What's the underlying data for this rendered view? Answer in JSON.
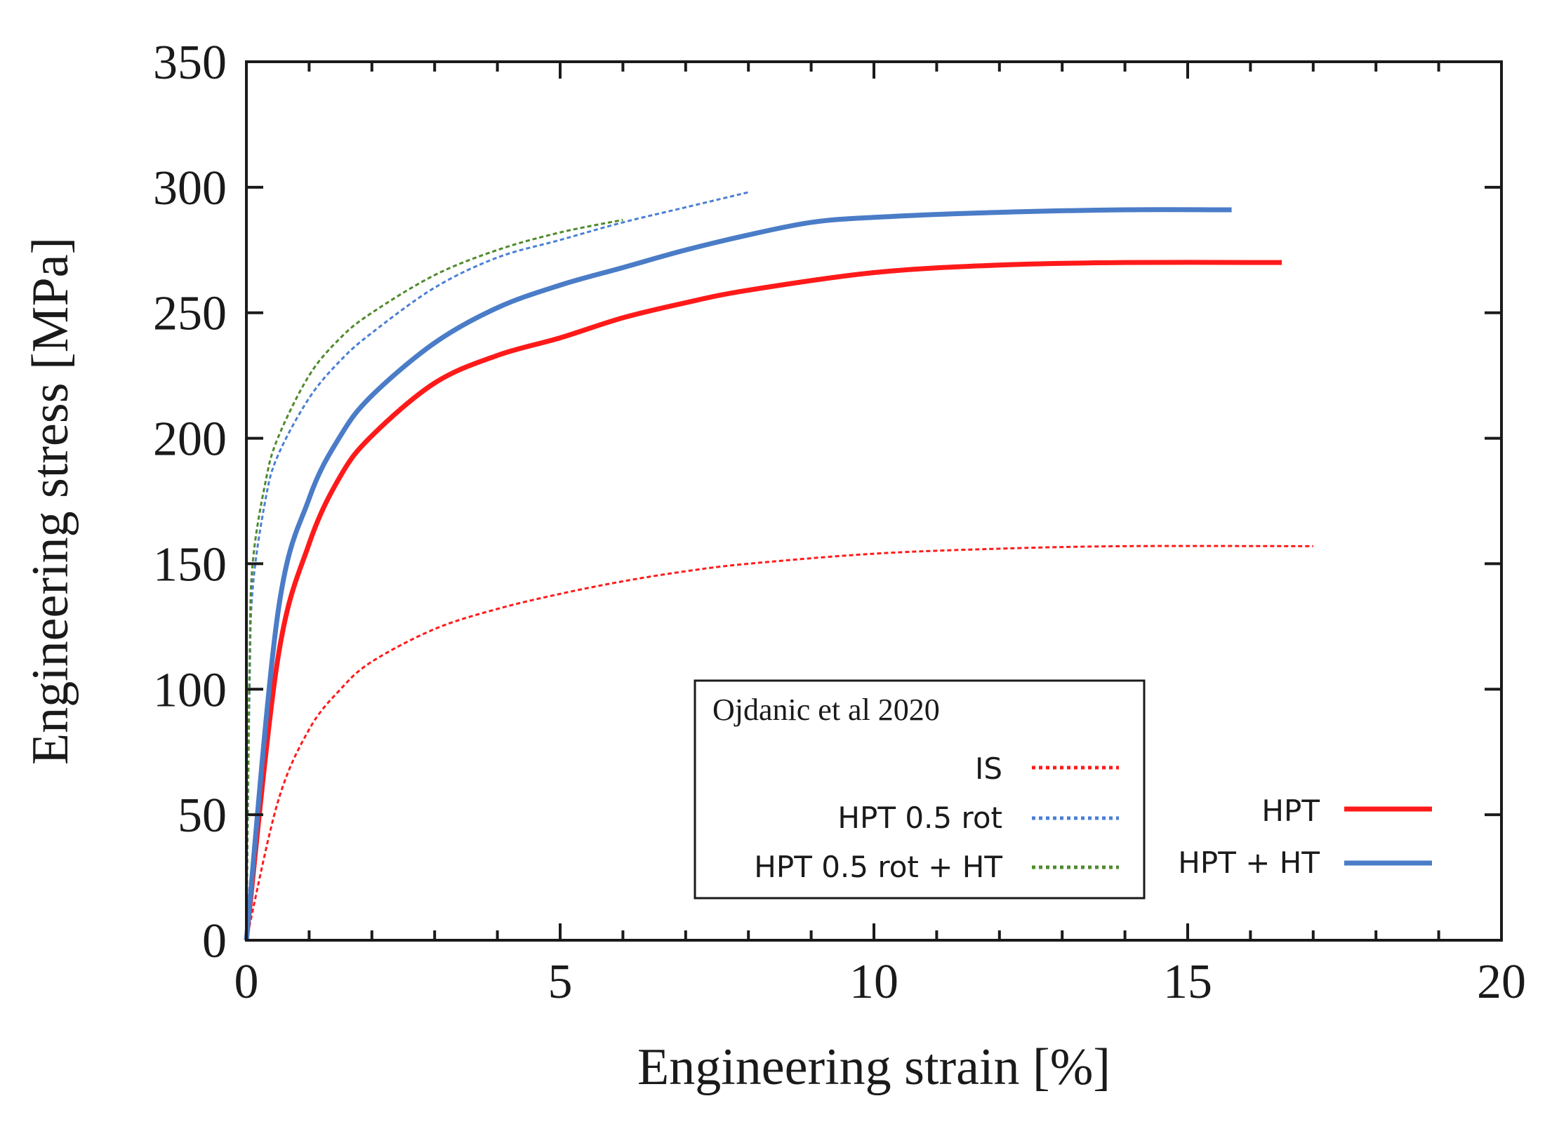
{
  "chart_data": {
    "type": "line",
    "xlabel": "Engineering strain [%]",
    "ylabel": "Engineering stress [MPa]",
    "xlim": [
      0,
      20
    ],
    "ylim": [
      0,
      350
    ],
    "x_ticks": [
      "0",
      "5",
      "10",
      "15",
      "20"
    ],
    "y_ticks": [
      "0",
      "50",
      "100",
      "150",
      "200",
      "250",
      "300",
      "350"
    ],
    "grid": false,
    "legend_box": {
      "title": "Ojdanic et al 2020",
      "placement": "lower-center"
    },
    "series": [
      {
        "name": "IS",
        "color": "#ff1a1a",
        "style": "dotted",
        "x": [
          0,
          0.5,
          1,
          1.5,
          2,
          3,
          4,
          5,
          6,
          7,
          8,
          10,
          12,
          14,
          17
        ],
        "y": [
          0,
          55,
          84,
          100,
          111,
          124,
          132,
          138,
          143,
          147,
          150,
          154,
          156,
          157,
          157
        ]
      },
      {
        "name": "HPT 0.5 rot",
        "color": "#4a7fd4",
        "style": "dotted",
        "x": [
          0,
          0.05,
          0.1,
          0.3,
          0.5,
          1,
          1.5,
          2,
          3,
          4,
          5,
          6,
          7,
          8
        ],
        "y": [
          0,
          100,
          140,
          175,
          193,
          216,
          231,
          242,
          260,
          272,
          279,
          286,
          292,
          298
        ]
      },
      {
        "name": "HPT 0.5 rot + HT",
        "color": "#4f8a2c",
        "style": "dotted",
        "x": [
          0,
          0.05,
          0.1,
          0.3,
          0.5,
          1,
          1.5,
          2,
          3,
          4,
          5,
          6
        ],
        "y": [
          0,
          110,
          150,
          182,
          200,
          225,
          240,
          250,
          265,
          275,
          282,
          287
        ]
      },
      {
        "name": "HPT",
        "color": "#ff1a1a",
        "style": "solid",
        "x": [
          0,
          0.5,
          1,
          1.5,
          2,
          3,
          4,
          5,
          6,
          7,
          8,
          10,
          12,
          14,
          16.5
        ],
        "y": [
          0,
          112,
          158,
          185,
          201,
          222,
          233,
          240,
          248,
          254,
          259,
          266,
          269,
          270,
          270
        ]
      },
      {
        "name": "HPT + HT",
        "color": "#4a7cc7",
        "style": "solid",
        "x": [
          0,
          0.5,
          1,
          1.5,
          2,
          3,
          4,
          5,
          6,
          7,
          8,
          9,
          10,
          12,
          14,
          15.7
        ],
        "y": [
          0,
          130,
          176,
          201,
          217,
          238,
          252,
          261,
          268,
          275,
          281,
          286,
          288,
          290,
          291,
          291
        ]
      }
    ]
  }
}
